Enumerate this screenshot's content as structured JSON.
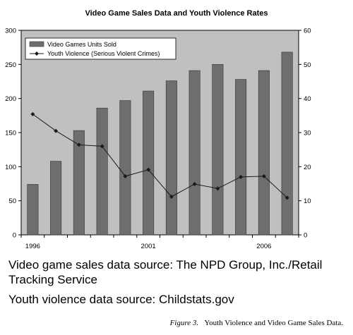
{
  "chart_data": {
    "type": "bar",
    "title": "Video Game Sales Data and Youth Violence Rates",
    "x": [
      1996,
      1997,
      1998,
      1999,
      2000,
      2001,
      2002,
      2003,
      2004,
      2005,
      2006,
      2007
    ],
    "x_tick_labels": [
      "1996",
      "2001",
      "2006"
    ],
    "x_tick_years": [
      1996,
      2001,
      2006
    ],
    "series": [
      {
        "name": "Video Games Units Sold",
        "type": "bar",
        "axis": "left",
        "values": [
          74,
          108,
          153,
          186,
          197,
          211,
          226,
          241,
          250,
          228,
          241,
          268
        ]
      },
      {
        "name": "Youth Violence (Serious Violent Crimes)",
        "type": "line",
        "axis": "right",
        "values": [
          35.4,
          30.5,
          26.4,
          26.0,
          17.2,
          19.1,
          11.2,
          14.9,
          13.6,
          17.0,
          17.2,
          10.9
        ]
      }
    ],
    "ylim_left": [
      0,
      300
    ],
    "yticks_left": [
      0,
      50,
      100,
      150,
      200,
      250,
      300
    ],
    "ylim_right": [
      0,
      60
    ],
    "yticks_right": [
      0,
      10,
      20,
      30,
      40,
      50,
      60
    ],
    "legend_position": "top-left",
    "grid": false,
    "plot_background": "#c0c0c0",
    "bar_color": "#6e6e6e",
    "line_color": "#1a1a1a"
  },
  "sources": {
    "sales": "Video game sales data source: The NPD Group, Inc./Retail Tracking Service",
    "violence": "Youth violence data source: Childstats.gov"
  },
  "caption": {
    "label": "Figure 3.",
    "text": "Youth Violence and Video Game Sales Data."
  }
}
